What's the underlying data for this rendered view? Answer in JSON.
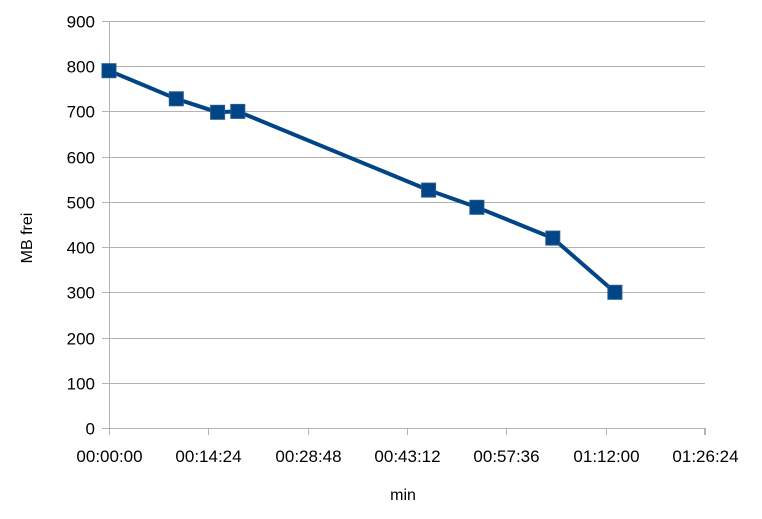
{
  "chart_data": {
    "type": "line",
    "title": "",
    "xlabel": "min",
    "ylabel": "MB frei",
    "x_unit": "time hh:mm:ss",
    "xlim": [
      "00:00:00",
      "01:26:24"
    ],
    "ylim": [
      0,
      900
    ],
    "x_ticks": [
      "00:00:00",
      "00:14:24",
      "00:28:48",
      "00:43:12",
      "00:57:36",
      "01:12:00",
      "01:26:24"
    ],
    "y_ticks": [
      0,
      100,
      200,
      300,
      400,
      500,
      600,
      700,
      800,
      900
    ],
    "grid": "horizontal",
    "legend": "none",
    "series": [
      {
        "color": "#004586",
        "marker": "square",
        "points": [
          {
            "x": "00:00:00",
            "y": 790
          },
          {
            "x": "00:09:45",
            "y": 728
          },
          {
            "x": "00:15:45",
            "y": 698
          },
          {
            "x": "00:18:40",
            "y": 700
          },
          {
            "x": "00:46:20",
            "y": 526
          },
          {
            "x": "00:53:20",
            "y": 488
          },
          {
            "x": "01:04:20",
            "y": 420
          },
          {
            "x": "01:13:20",
            "y": 300
          }
        ]
      }
    ]
  }
}
